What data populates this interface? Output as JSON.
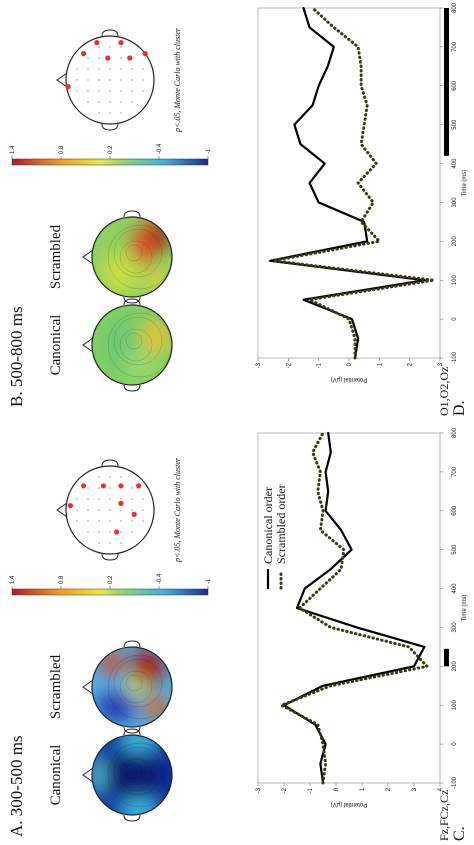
{
  "panels": [
    {
      "label": "A. 300-500 ms",
      "conditions": [
        "Canonical",
        "Scrambled"
      ],
      "colorbar": [
        1.4,
        0.8,
        0.2,
        -0.4,
        -1
      ],
      "stat_note": "p<.05, Monte Carlo with cluster"
    },
    {
      "label": "B. 500-800 ms",
      "conditions": [
        "Canonical",
        "Scrambled"
      ],
      "colorbar": [
        1.4,
        0.8,
        0.2,
        -0.4,
        -1
      ],
      "stat_note": "p<.05, Monte Carlo with cluster"
    }
  ],
  "chart_data": [
    {
      "type": "line",
      "panel_label": "C.",
      "title": "Fz,FCz,Cz",
      "xlabel": "Time (ms)",
      "ylabel": "Potential (μV)",
      "x": [
        -100,
        -50,
        0,
        50,
        100,
        150,
        200,
        250,
        300,
        350,
        400,
        450,
        500,
        550,
        600,
        650,
        700,
        750,
        800
      ],
      "xlim": [
        -100,
        800
      ],
      "xticks": [
        -100,
        0,
        100,
        200,
        300,
        400,
        500,
        600,
        700,
        800
      ],
      "ylim": [
        -3,
        4
      ],
      "yticks": [
        -3,
        -2,
        -1,
        0,
        1,
        2,
        3,
        4
      ],
      "y_reversed": true,
      "significant_window": [
        200,
        245
      ],
      "legend": true,
      "series": [
        {
          "name": "Canonical order",
          "color": "#000000",
          "style": "solid",
          "values": [
            -0.5,
            -0.6,
            -0.4,
            -0.8,
            -2.0,
            -0.5,
            3.0,
            3.4,
            0.8,
            -1.5,
            -1.2,
            -0.2,
            0.6,
            0.2,
            -0.4,
            -0.3,
            -0.4,
            -0.2,
            -0.3
          ]
        },
        {
          "name": "Scrambled order",
          "color": "#3a3a10",
          "style": "dotted",
          "values": [
            -0.5,
            -0.4,
            -0.5,
            -0.7,
            -2.1,
            -0.2,
            3.5,
            2.8,
            -0.2,
            -1.4,
            -0.6,
            0.2,
            0.3,
            -0.6,
            -0.5,
            -0.7,
            -0.6,
            -0.9,
            -0.5
          ]
        }
      ]
    },
    {
      "type": "line",
      "panel_label": "D.",
      "title": "O1,O2,Oz",
      "xlabel": "Time (ms)",
      "ylabel": "Potential (μV)",
      "x": [
        -100,
        -50,
        0,
        50,
        100,
        150,
        200,
        250,
        300,
        350,
        400,
        450,
        500,
        550,
        600,
        650,
        700,
        750,
        800
      ],
      "xlim": [
        -100,
        800
      ],
      "xticks": [
        -100,
        0,
        100,
        200,
        300,
        400,
        500,
        600,
        700,
        800
      ],
      "ylim": [
        -3,
        3
      ],
      "yticks": [
        -3,
        -2,
        -1,
        0,
        1,
        2,
        3
      ],
      "y_reversed": true,
      "significant_window": [
        420,
        800
      ],
      "legend": false,
      "series": [
        {
          "name": "Canonical order",
          "color": "#000000",
          "style": "solid",
          "values": [
            0.2,
            0.3,
            0.1,
            -1.5,
            2.5,
            -2.6,
            0.6,
            0.5,
            -1.0,
            -1.3,
            -0.8,
            -1.6,
            -1.8,
            -1.2,
            -1.0,
            -0.7,
            -0.5,
            -1.3,
            -1.5
          ]
        },
        {
          "name": "Scrambled order",
          "color": "#3a3a10",
          "style": "dotted",
          "values": [
            0.2,
            0.2,
            0.0,
            -1.3,
            2.8,
            -2.5,
            1.0,
            0.4,
            0.8,
            0.3,
            0.9,
            0.4,
            0.5,
            0.6,
            0.4,
            0.4,
            0.3,
            -0.5,
            -1.2
          ]
        }
      ]
    }
  ]
}
